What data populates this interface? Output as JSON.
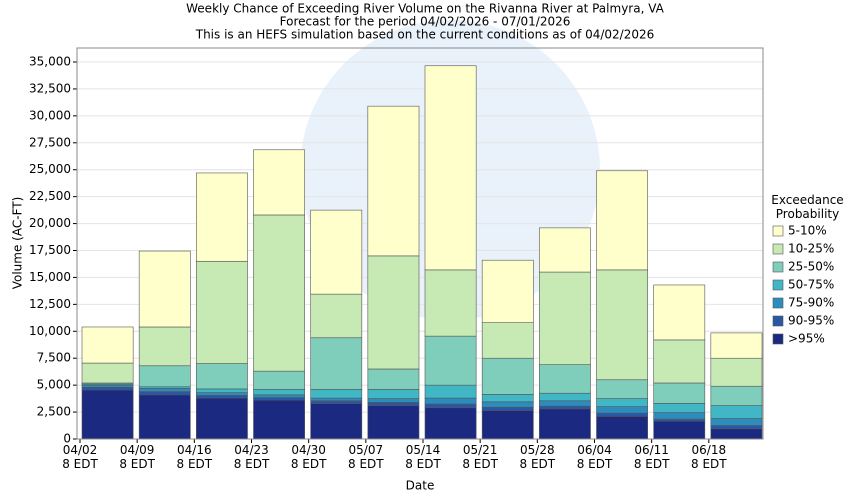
{
  "chart_data": {
    "type": "stacked_bar",
    "title": "Weekly Chance of Exceeding River Volume on the Rivanna River at Palmyra, VA",
    "subtitles": [
      "Forecast for the period 04/02/2026 - 07/01/2026",
      "This is an HEFS simulation based on the current conditions as of 04/02/2026"
    ],
    "x_label": "Date",
    "y_label": "Volume (AC-FT)",
    "legend_title": "Exceedance\nProbability",
    "categories": [
      "04/02\n8 EDT",
      "04/09\n8 EDT",
      "04/16\n8 EDT",
      "04/23\n8 EDT",
      "04/30\n8 EDT",
      "05/07\n8 EDT",
      "05/14\n8 EDT",
      "05/21\n8 EDT",
      "05/28\n8 EDT",
      "06/04\n8 EDT",
      "06/11\n8 EDT",
      "06/18\n8 EDT"
    ],
    "series": [
      {
        "name": ">95%",
        "color": "#1b2a80",
        "values": [
          4550,
          4100,
          3800,
          3600,
          3300,
          3100,
          2900,
          2650,
          2800,
          2100,
          1650,
          950
        ]
      },
      {
        "name": "90-95%",
        "color": "#2957a4",
        "values": [
          250,
          300,
          250,
          250,
          250,
          300,
          350,
          300,
          250,
          300,
          200,
          300
        ]
      },
      {
        "name": "75-90%",
        "color": "#2b8cbe",
        "values": [
          200,
          300,
          250,
          250,
          250,
          350,
          550,
          500,
          500,
          600,
          600,
          650
        ]
      },
      {
        "name": "50-75%",
        "color": "#41b6c4",
        "values": [
          100,
          150,
          350,
          500,
          800,
          850,
          1200,
          700,
          700,
          750,
          850,
          1200
        ]
      },
      {
        "name": "25-50%",
        "color": "#7fcdbb",
        "values": [
          100,
          1950,
          2350,
          1700,
          4800,
          1900,
          4550,
          3350,
          2650,
          1750,
          1900,
          1800
        ]
      },
      {
        "name": "10-25%",
        "color": "#c7e9b4",
        "values": [
          1850,
          3600,
          9500,
          14500,
          4050,
          10500,
          6150,
          3300,
          8600,
          10200,
          4000,
          2600
        ]
      },
      {
        "name": "5-10%",
        "color": "#ffffcc",
        "values": [
          3350,
          7050,
          8200,
          6050,
          7800,
          13900,
          18950,
          5800,
          4100,
          9200,
          5100,
          2350
        ]
      }
    ],
    "ylim": [
      0,
      36300
    ],
    "yticks": [
      0,
      {
        "value": 2500,
        "label": "2,500"
      },
      {
        "value": 5000,
        "label": "5,000"
      },
      {
        "value": 7500,
        "label": "7,500"
      },
      {
        "value": 10000,
        "label": "10,000"
      },
      {
        "value": 12500,
        "label": "12,500"
      },
      {
        "value": 15000,
        "label": "15,000"
      },
      {
        "value": 17500,
        "label": "17,500"
      },
      {
        "value": 20000,
        "label": "20,000"
      },
      {
        "value": 22500,
        "label": "22,500"
      },
      {
        "value": 25000,
        "label": "25,000"
      },
      {
        "value": 27500,
        "label": "27,500"
      },
      {
        "value": 30000,
        "label": "30,000"
      },
      {
        "value": 32500,
        "label": "32,500"
      },
      {
        "value": 35000,
        "label": "35,000"
      }
    ],
    "grid": true
  }
}
